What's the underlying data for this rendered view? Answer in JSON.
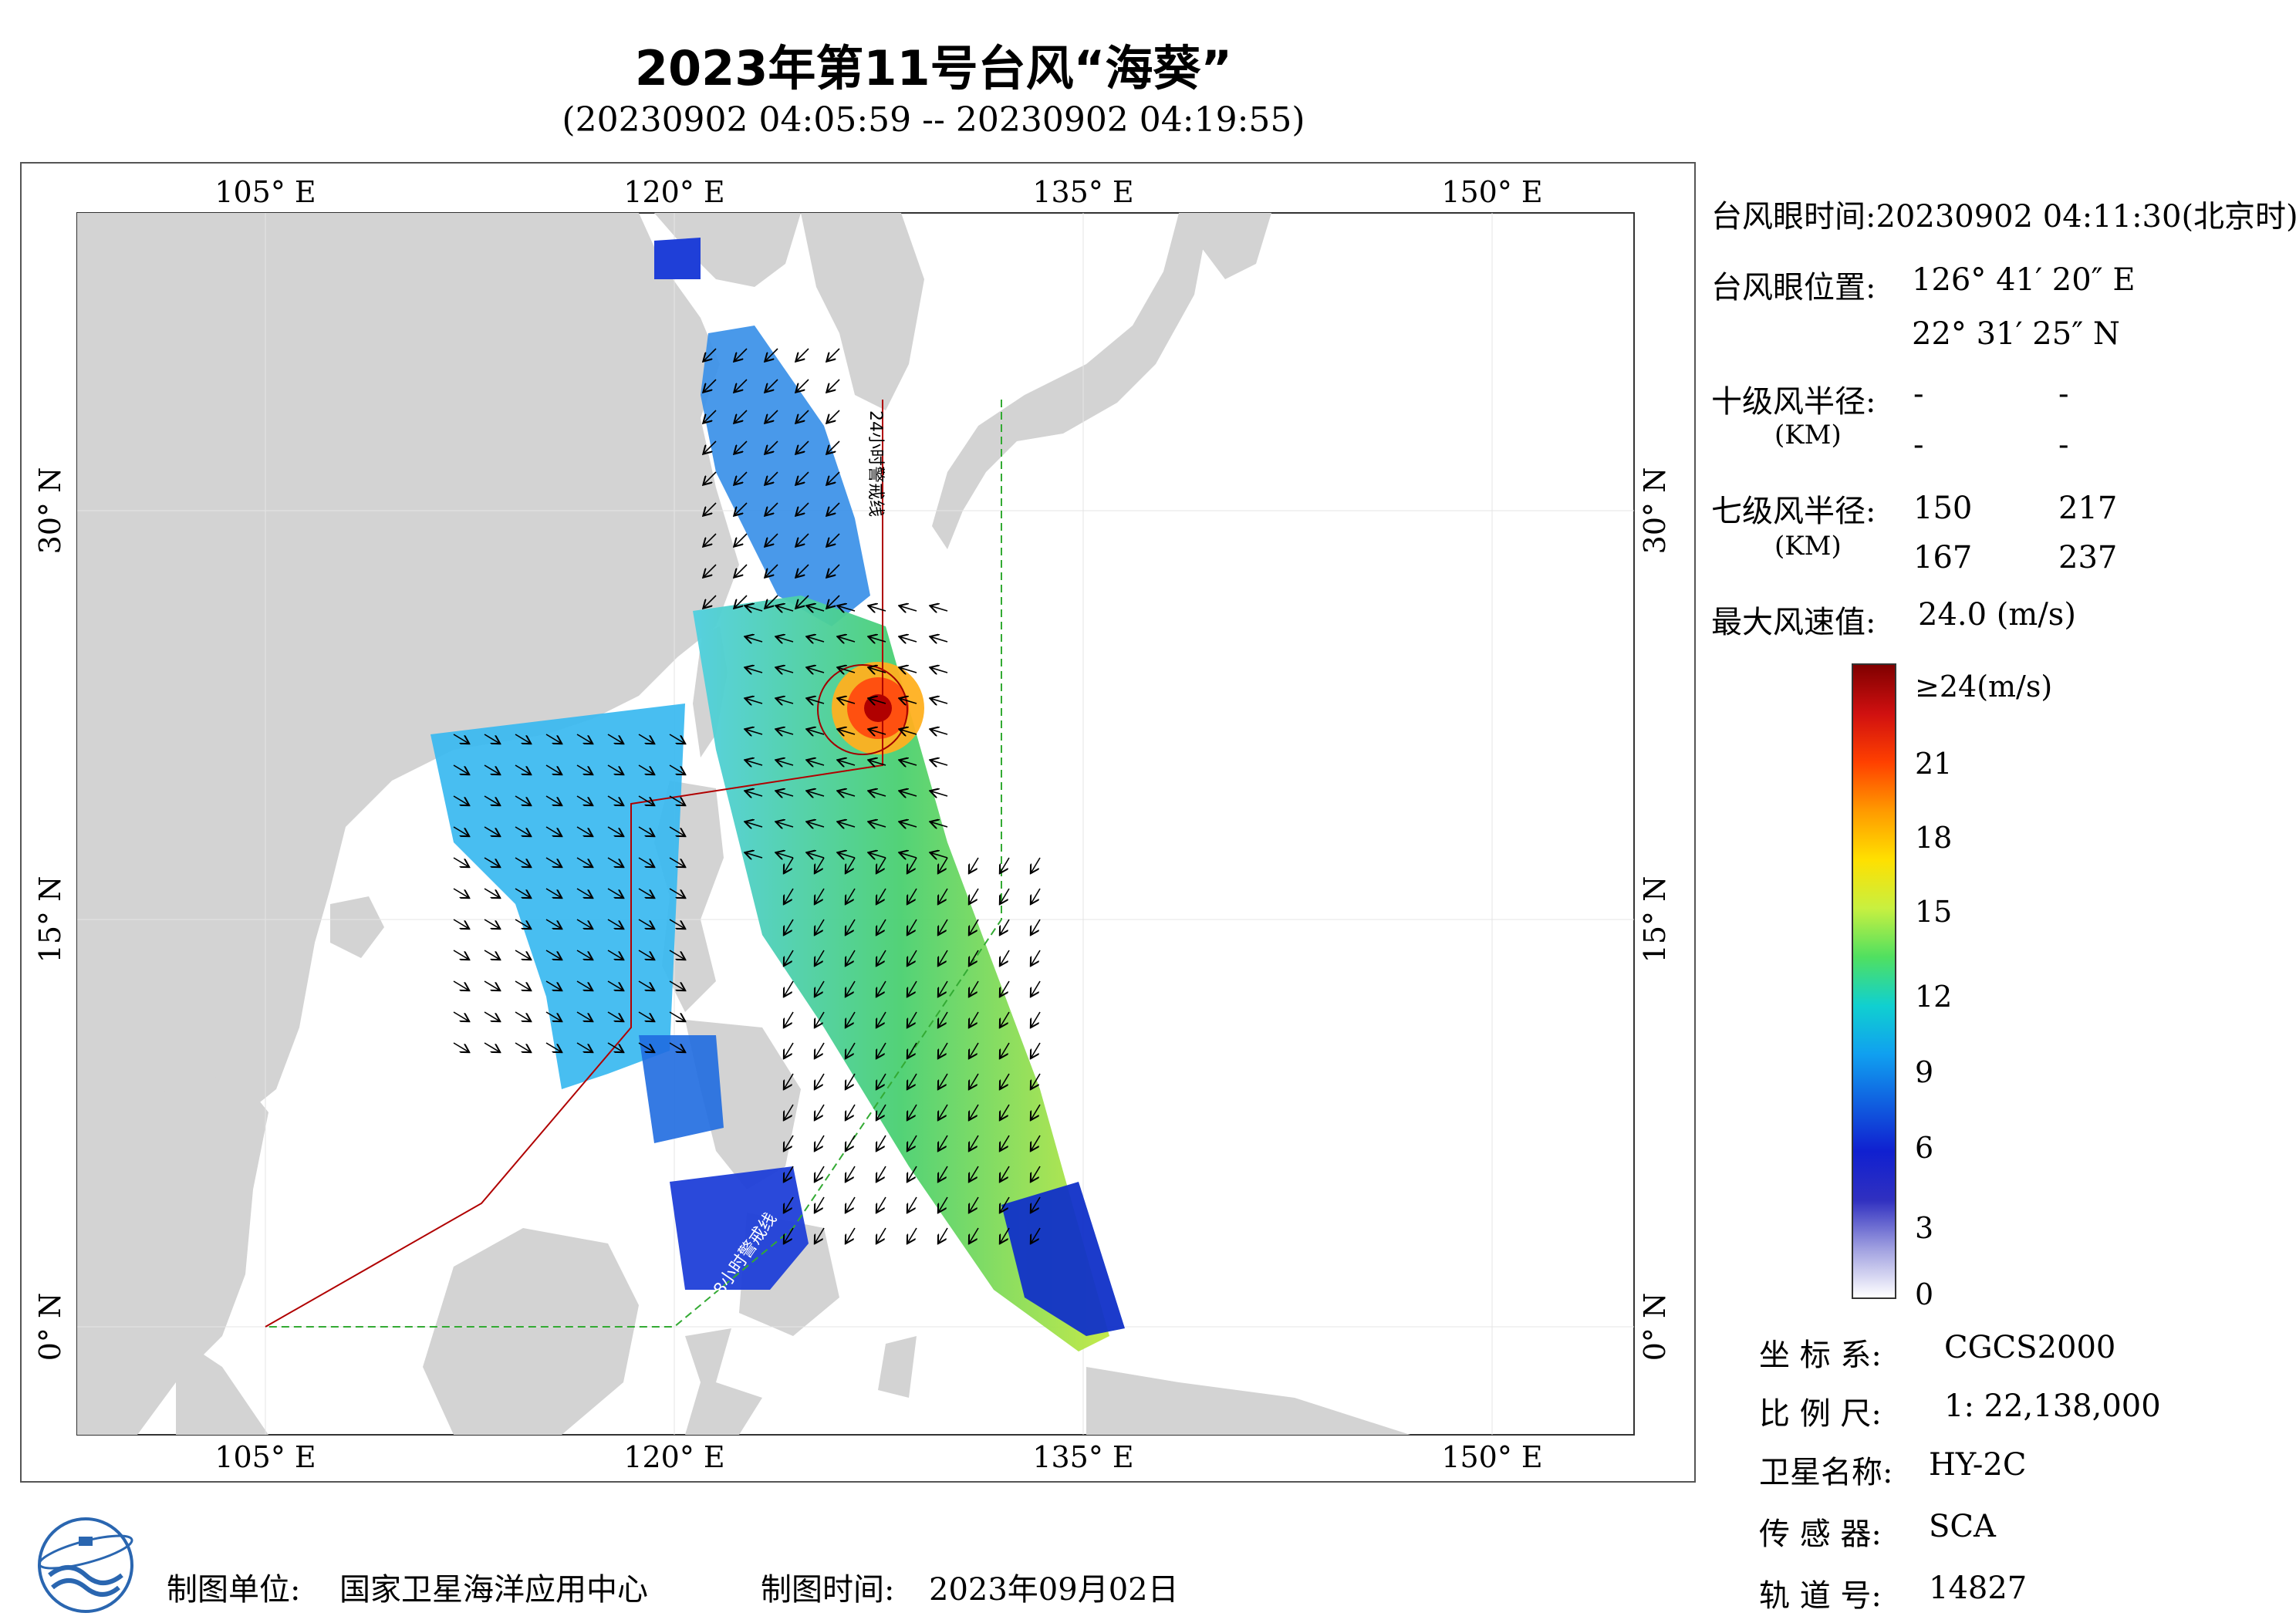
{
  "header": {
    "title": "2023年第11号台风“海葵”",
    "subtitle": "(20230902 04:05:59 -- 20230902 04:19:55)"
  },
  "map": {
    "lon_ticks_top": [
      "105° E",
      "120° E",
      "135° E",
      "150° E"
    ],
    "lon_ticks_bottom": [
      "105° E",
      "120° E",
      "135° E",
      "150° E"
    ],
    "lat_ticks_left": [
      "30° N",
      "15° N",
      "0° N"
    ],
    "lat_ticks_right": [
      "30° N",
      "15° N",
      "0° N"
    ],
    "warning_line_24h": "24小时警戒线",
    "warning_line_48h": "48小时警戒线",
    "colors": {
      "land": "#d3d3d3",
      "sea": "#ffffff",
      "warning_24h": "#b00000",
      "warning_48h": "#33aa33"
    }
  },
  "info": {
    "eye_time_label": "台风眼时间:",
    "eye_time_value": "20230902 04:11:30(北京时)",
    "eye_pos_label": "台风眼位置:",
    "eye_lon": "126° 41′ 20″ E",
    "eye_lat": "22° 31′ 25″ N",
    "r10_label": "十级风半径:",
    "r10_unit": "(KM)",
    "r10_values": [
      "-",
      "-",
      "-",
      "-"
    ],
    "r7_label": "七级风半径:",
    "r7_unit": "(KM)",
    "r7_values": [
      "150",
      "217",
      "167",
      "237"
    ],
    "max_wind_label": "最大风速值:",
    "max_wind_value": "24.0 (m/s)"
  },
  "colorbar": {
    "labels": [
      "≥24(m/s)",
      "21",
      "18",
      "15",
      "12",
      "9",
      "6",
      "3",
      "0"
    ],
    "stops": [
      "#800000",
      "#d01010",
      "#ff4000",
      "#ff9a00",
      "#ffe000",
      "#c8f040",
      "#50e060",
      "#10d0d0",
      "#10a0f0",
      "#1060e0",
      "#1020d0",
      "#3030c0",
      "#a0a0e0",
      "#ffffff"
    ]
  },
  "meta": {
    "crs_label": "坐 标 系:",
    "crs_value": "CGCS2000",
    "scale_label": "比 例 尺:",
    "scale_value": "1: 22,138,000",
    "satellite_label": "卫星名称:",
    "satellite_value": "HY-2C",
    "sensor_label": "传 感 器:",
    "sensor_value": "SCA",
    "orbit_label": "轨 道 号:",
    "orbit_value": "14827"
  },
  "footer": {
    "org_label": "制图单位:",
    "org_value": "国家卫星海洋应用中心",
    "date_label": "制图时间:",
    "date_value": "2023年09月02日"
  }
}
